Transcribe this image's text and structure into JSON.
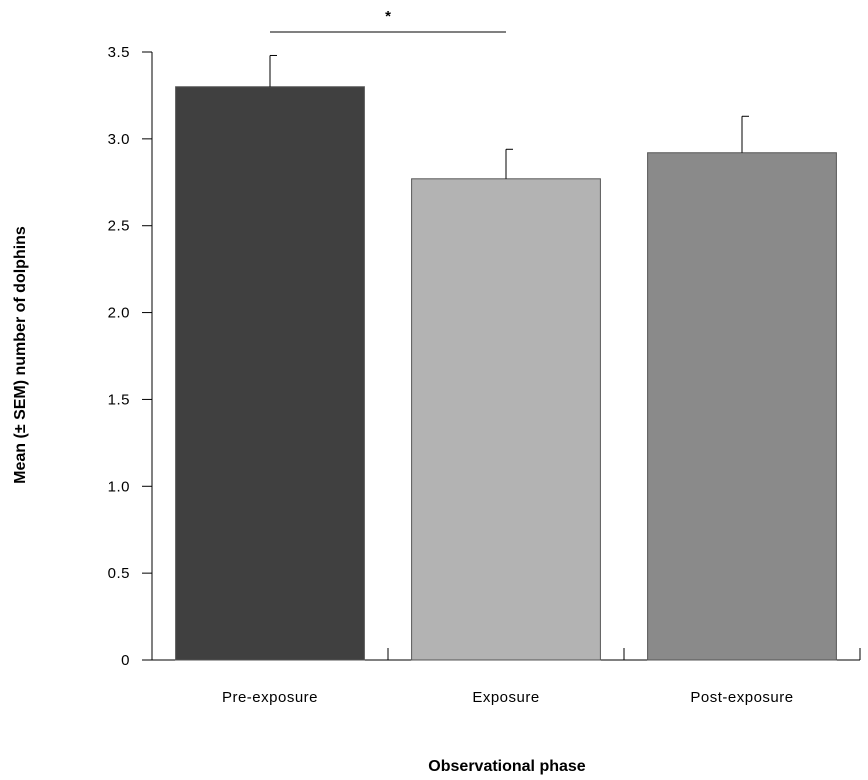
{
  "chart_data": {
    "type": "bar",
    "title": "",
    "xlabel": "Observational phase",
    "ylabel": "Mean (± SEM) number of dolphins",
    "categories": [
      "Pre-exposure",
      "Exposure",
      "Post-exposure"
    ],
    "values": [
      3.3,
      2.77,
      2.92
    ],
    "errors": [
      0.18,
      0.17,
      0.21
    ],
    "colors": [
      "#404040",
      "#b3b3b3",
      "#8a8a8a"
    ],
    "ylim": [
      0,
      3.5
    ],
    "yticks": [
      "0",
      "0.5",
      "1.0",
      "1.5",
      "2.0",
      "2.5",
      "3.0",
      "3.5"
    ],
    "ytick_values": [
      0,
      0.5,
      1.0,
      1.5,
      2.0,
      2.5,
      3.0,
      3.5
    ],
    "grid": false,
    "significance": {
      "from": 0,
      "to": 1,
      "label": "*"
    }
  }
}
